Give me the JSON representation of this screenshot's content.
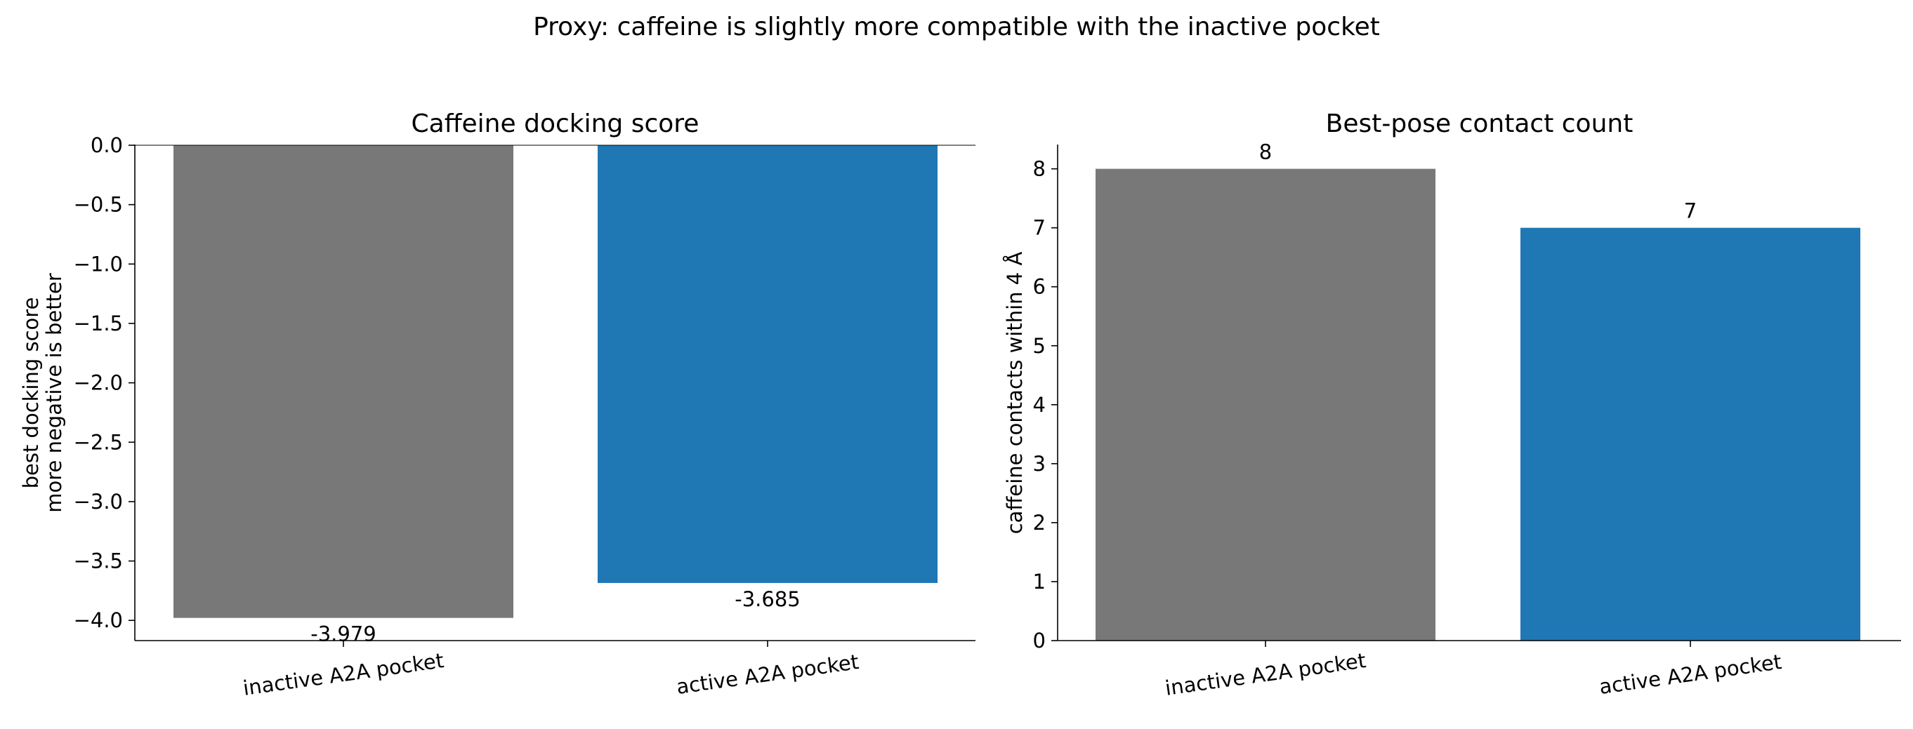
{
  "suptitle": "Proxy: caffeine is slightly more compatible with the inactive pocket",
  "colors": {
    "inactive": "#787878",
    "active": "#1f77b4"
  },
  "chart_data": [
    {
      "type": "bar",
      "title": "Caffeine docking score",
      "ylabel_lines": [
        "best docking score",
        "more negative is better"
      ],
      "categories": [
        "inactive A2A pocket",
        "active A2A pocket"
      ],
      "values": [
        -3.979,
        -3.685
      ],
      "value_labels": [
        "-3.979",
        "-3.685"
      ],
      "ylim": [
        -4.17,
        0.0
      ],
      "yticks": [
        0.0,
        -0.5,
        -1.0,
        -1.5,
        -2.0,
        -2.5,
        -3.0,
        -3.5,
        -4.0
      ],
      "ytick_labels": [
        "0.0",
        "−0.5",
        "−1.0",
        "−1.5",
        "−2.0",
        "−2.5",
        "−3.0",
        "−3.5",
        "−4.0"
      ],
      "grid": false,
      "zero_line": true
    },
    {
      "type": "bar",
      "title": "Best-pose contact count",
      "ylabel_lines": [
        "caffeine contacts within 4 Å"
      ],
      "categories": [
        "inactive A2A pocket",
        "active A2A pocket"
      ],
      "values": [
        8,
        7
      ],
      "value_labels": [
        "8",
        "7"
      ],
      "ylim": [
        0,
        8.4
      ],
      "yticks": [
        0,
        1,
        2,
        3,
        4,
        5,
        6,
        7,
        8
      ],
      "ytick_labels": [
        "0",
        "1",
        "2",
        "3",
        "4",
        "5",
        "6",
        "7",
        "8"
      ],
      "grid": false,
      "zero_line": false
    }
  ]
}
